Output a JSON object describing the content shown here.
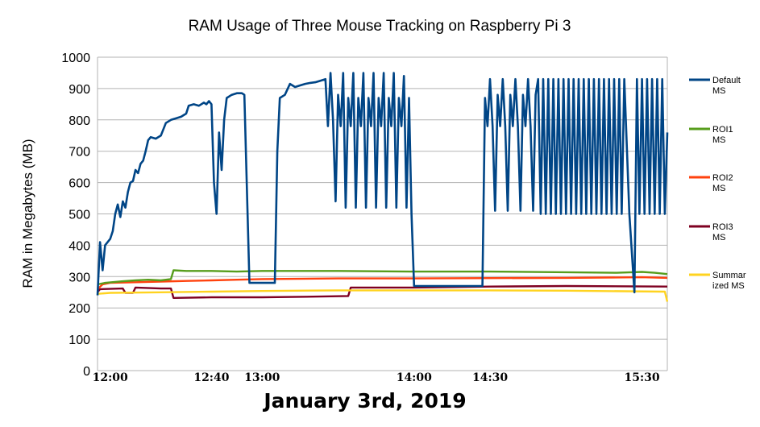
{
  "chart_data": {
    "type": "line",
    "title": "RAM Usage of Three Mouse Tracking on Raspberry Pi 3",
    "xlabel": "January 3rd, 2019",
    "ylabel": "RAM in Megabytes (MB)",
    "ylim": [
      0,
      1000
    ],
    "yticks": [
      0,
      100,
      200,
      300,
      400,
      500,
      600,
      700,
      800,
      900,
      1000
    ],
    "xlim": [
      "11:55",
      "15:40"
    ],
    "xticks": [
      {
        "label": "12:00",
        "t": "12:00"
      },
      {
        "label": "12:40",
        "t": "12:40"
      },
      {
        "label": "13:00",
        "t": "13:00"
      },
      {
        "label": "14:00",
        "t": "14:00"
      },
      {
        "label": "14:30",
        "t": "14:30"
      },
      {
        "label": "15:30",
        "t": "15:30"
      }
    ],
    "grid": true,
    "legend_position": "right",
    "series": [
      {
        "name": "Default MS",
        "legend_lines": [
          "Default",
          "MS"
        ],
        "color": "#004586",
        "points": [
          [
            "11:55",
            240
          ],
          [
            "11:56",
            410
          ],
          [
            "11:57",
            320
          ],
          [
            "11:58",
            400
          ],
          [
            "12:00",
            420
          ],
          [
            "12:01",
            445
          ],
          [
            "12:02",
            500
          ],
          [
            "12:03",
            530
          ],
          [
            "12:04",
            490
          ],
          [
            "12:05",
            540
          ],
          [
            "12:06",
            520
          ],
          [
            "12:07",
            570
          ],
          [
            "12:08",
            600
          ],
          [
            "12:09",
            605
          ],
          [
            "12:10",
            640
          ],
          [
            "12:11",
            630
          ],
          [
            "12:12",
            660
          ],
          [
            "12:13",
            670
          ],
          [
            "12:14",
            700
          ],
          [
            "12:15",
            735
          ],
          [
            "12:16",
            745
          ],
          [
            "12:18",
            740
          ],
          [
            "12:20",
            750
          ],
          [
            "12:22",
            790
          ],
          [
            "12:24",
            800
          ],
          [
            "12:26",
            805
          ],
          [
            "12:28",
            810
          ],
          [
            "12:30",
            820
          ],
          [
            "12:31",
            845
          ],
          [
            "12:33",
            850
          ],
          [
            "12:35",
            845
          ],
          [
            "12:37",
            855
          ],
          [
            "12:38",
            850
          ],
          [
            "12:39",
            860
          ],
          [
            "12:40",
            850
          ],
          [
            "12:41",
            600
          ],
          [
            "12:42",
            500
          ],
          [
            "12:43",
            760
          ],
          [
            "12:44",
            640
          ],
          [
            "12:45",
            800
          ],
          [
            "12:46",
            870
          ],
          [
            "12:48",
            880
          ],
          [
            "12:50",
            885
          ],
          [
            "12:52",
            885
          ],
          [
            "12:53",
            880
          ],
          [
            "12:55",
            280
          ],
          [
            "13:00",
            280
          ],
          [
            "13:05",
            280
          ],
          [
            "13:06",
            700
          ],
          [
            "13:07",
            870
          ],
          [
            "13:09",
            880
          ],
          [
            "13:11",
            915
          ],
          [
            "13:13",
            905
          ],
          [
            "13:15",
            910
          ],
          [
            "13:17",
            915
          ],
          [
            "13:19",
            918
          ],
          [
            "13:21",
            920
          ],
          [
            "13:23",
            925
          ],
          [
            "13:25",
            930
          ],
          [
            "13:26",
            780
          ],
          [
            "13:27",
            950
          ],
          [
            "13:28",
            800
          ],
          [
            "13:29",
            540
          ],
          [
            "13:30",
            880
          ],
          [
            "13:31",
            780
          ],
          [
            "13:32",
            950
          ],
          [
            "13:33",
            520
          ],
          [
            "13:34",
            870
          ],
          [
            "13:35",
            780
          ],
          [
            "13:36",
            950
          ],
          [
            "13:37",
            520
          ],
          [
            "13:38",
            870
          ],
          [
            "13:39",
            780
          ],
          [
            "13:40",
            950
          ],
          [
            "13:41",
            520
          ],
          [
            "13:42",
            870
          ],
          [
            "13:43",
            780
          ],
          [
            "13:44",
            950
          ],
          [
            "13:45",
            520
          ],
          [
            "13:46",
            870
          ],
          [
            "13:47",
            780
          ],
          [
            "13:48",
            950
          ],
          [
            "13:49",
            520
          ],
          [
            "13:50",
            870
          ],
          [
            "13:51",
            780
          ],
          [
            "13:52",
            950
          ],
          [
            "13:53",
            520
          ],
          [
            "13:54",
            870
          ],
          [
            "13:55",
            780
          ],
          [
            "13:56",
            940
          ],
          [
            "13:57",
            520
          ],
          [
            "13:58",
            870
          ],
          [
            "13:59",
            500
          ],
          [
            "14:00",
            270
          ],
          [
            "14:05",
            270
          ],
          [
            "14:10",
            270
          ],
          [
            "14:15",
            270
          ],
          [
            "14:20",
            270
          ],
          [
            "14:25",
            270
          ],
          [
            "14:27",
            270
          ],
          [
            "14:28",
            870
          ],
          [
            "14:29",
            780
          ],
          [
            "14:30",
            930
          ],
          [
            "14:31",
            780
          ],
          [
            "14:32",
            510
          ],
          [
            "14:33",
            880
          ],
          [
            "14:34",
            780
          ],
          [
            "14:35",
            930
          ],
          [
            "14:36",
            780
          ],
          [
            "14:37",
            510
          ],
          [
            "14:38",
            880
          ],
          [
            "14:39",
            780
          ],
          [
            "14:40",
            930
          ],
          [
            "14:41",
            780
          ],
          [
            "14:42",
            510
          ],
          [
            "14:43",
            880
          ],
          [
            "14:44",
            780
          ],
          [
            "14:45",
            930
          ],
          [
            "14:46",
            780
          ],
          [
            "14:47",
            510
          ],
          [
            "14:48",
            880
          ],
          [
            "14:49",
            930
          ],
          [
            "14:50",
            500
          ],
          [
            "14:51",
            930
          ],
          [
            "14:52",
            500
          ],
          [
            "14:53",
            930
          ],
          [
            "14:54",
            500
          ],
          [
            "14:55",
            930
          ],
          [
            "14:56",
            500
          ],
          [
            "14:57",
            930
          ],
          [
            "14:58",
            500
          ],
          [
            "14:59",
            930
          ],
          [
            "15:00",
            500
          ],
          [
            "15:01",
            930
          ],
          [
            "15:02",
            500
          ],
          [
            "15:03",
            930
          ],
          [
            "15:04",
            500
          ],
          [
            "15:05",
            930
          ],
          [
            "15:06",
            500
          ],
          [
            "15:07",
            930
          ],
          [
            "15:08",
            500
          ],
          [
            "15:09",
            930
          ],
          [
            "15:10",
            500
          ],
          [
            "15:11",
            930
          ],
          [
            "15:12",
            500
          ],
          [
            "15:13",
            930
          ],
          [
            "15:14",
            500
          ],
          [
            "15:15",
            930
          ],
          [
            "15:16",
            500
          ],
          [
            "15:17",
            930
          ],
          [
            "15:18",
            500
          ],
          [
            "15:19",
            930
          ],
          [
            "15:20",
            500
          ],
          [
            "15:21",
            930
          ],
          [
            "15:22",
            500
          ],
          [
            "15:23",
            930
          ],
          [
            "15:25",
            500
          ],
          [
            "15:27",
            250
          ],
          [
            "15:28",
            930
          ],
          [
            "15:29",
            500
          ],
          [
            "15:30",
            930
          ],
          [
            "15:31",
            500
          ],
          [
            "15:32",
            930
          ],
          [
            "15:33",
            500
          ],
          [
            "15:34",
            930
          ],
          [
            "15:35",
            500
          ],
          [
            "15:36",
            930
          ],
          [
            "15:37",
            500
          ],
          [
            "15:38",
            930
          ],
          [
            "15:39",
            500
          ],
          [
            "15:40",
            760
          ]
        ]
      },
      {
        "name": "ROI1 MS",
        "legend_lines": [
          "ROI1",
          "MS"
        ],
        "color": "#579d1c",
        "points": [
          [
            "11:55",
            275
          ],
          [
            "11:58",
            280
          ],
          [
            "12:05",
            285
          ],
          [
            "12:10",
            288
          ],
          [
            "12:15",
            290
          ],
          [
            "12:20",
            288
          ],
          [
            "12:24",
            292
          ],
          [
            "12:25",
            320
          ],
          [
            "12:30",
            318
          ],
          [
            "12:40",
            318
          ],
          [
            "12:50",
            316
          ],
          [
            "13:00",
            318
          ],
          [
            "13:30",
            318
          ],
          [
            "14:00",
            316
          ],
          [
            "14:30",
            316
          ],
          [
            "15:00",
            314
          ],
          [
            "15:20",
            312
          ],
          [
            "15:30",
            315
          ],
          [
            "15:35",
            312
          ],
          [
            "15:40",
            308
          ]
        ]
      },
      {
        "name": "ROI2 MS",
        "legend_lines": [
          "ROI2",
          "MS"
        ],
        "color": "#ff420e",
        "points": [
          [
            "11:55",
            260
          ],
          [
            "11:57",
            275
          ],
          [
            "12:00",
            280
          ],
          [
            "12:10",
            282
          ],
          [
            "12:20",
            284
          ],
          [
            "12:30",
            286
          ],
          [
            "12:40",
            288
          ],
          [
            "12:50",
            290
          ],
          [
            "13:00",
            292
          ],
          [
            "13:30",
            294
          ],
          [
            "14:00",
            294
          ],
          [
            "14:30",
            295
          ],
          [
            "15:00",
            296
          ],
          [
            "15:30",
            298
          ],
          [
            "15:40",
            296
          ]
        ]
      },
      {
        "name": "ROI3 MS",
        "legend_lines": [
          "ROI3",
          "MS"
        ],
        "color": "#7e0021",
        "points": [
          [
            "11:55",
            250
          ],
          [
            "11:56",
            260
          ],
          [
            "12:05",
            262
          ],
          [
            "12:06",
            248
          ],
          [
            "12:09",
            248
          ],
          [
            "12:10",
            265
          ],
          [
            "12:20",
            262
          ],
          [
            "12:24",
            262
          ],
          [
            "12:25",
            232
          ],
          [
            "12:40",
            234
          ],
          [
            "13:00",
            234
          ],
          [
            "13:20",
            236
          ],
          [
            "13:34",
            238
          ],
          [
            "13:35",
            265
          ],
          [
            "14:00",
            265
          ],
          [
            "14:30",
            268
          ],
          [
            "15:00",
            270
          ],
          [
            "15:40",
            268
          ]
        ]
      },
      {
        "name": "Summarized MS",
        "legend_lines": [
          "Summar",
          "ized MS"
        ],
        "color": "#ffd320",
        "points": [
          [
            "11:55",
            245
          ],
          [
            "12:00",
            248
          ],
          [
            "12:20",
            250
          ],
          [
            "12:40",
            252
          ],
          [
            "13:00",
            254
          ],
          [
            "13:30",
            256
          ],
          [
            "14:00",
            256
          ],
          [
            "14:30",
            256
          ],
          [
            "15:00",
            255
          ],
          [
            "15:39",
            252
          ],
          [
            "15:40",
            220
          ]
        ]
      }
    ]
  }
}
